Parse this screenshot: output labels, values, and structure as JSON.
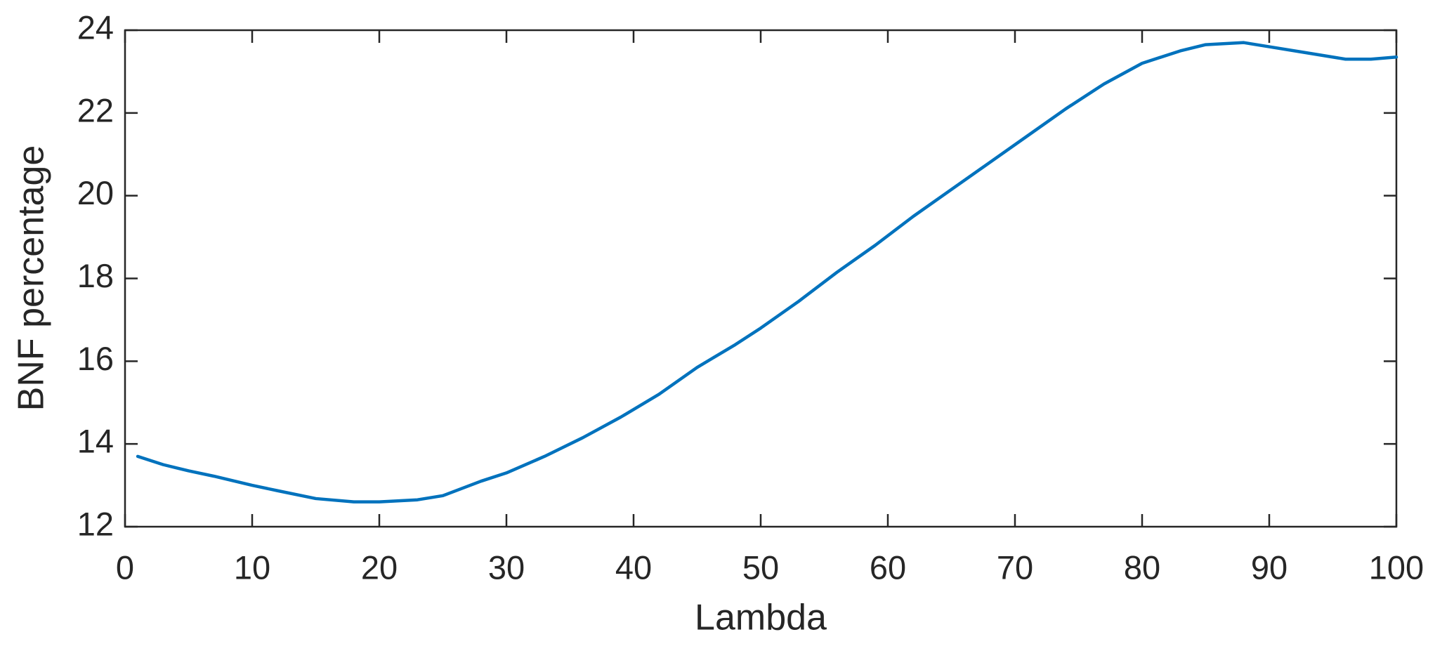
{
  "chart_data": {
    "type": "line",
    "xlabel": "Lambda",
    "ylabel": "BNF percentage",
    "x": [
      1,
      3,
      5,
      7,
      10,
      12,
      15,
      18,
      20,
      23,
      25,
      28,
      30,
      33,
      36,
      39,
      42,
      45,
      48,
      50,
      53,
      56,
      59,
      62,
      65,
      68,
      71,
      74,
      77,
      80,
      83,
      85,
      88,
      90,
      93,
      96,
      98,
      100
    ],
    "values": [
      13.7,
      13.5,
      13.35,
      13.22,
      13.0,
      12.87,
      12.68,
      12.6,
      12.6,
      12.65,
      12.75,
      13.1,
      13.3,
      13.7,
      14.15,
      14.65,
      15.2,
      15.85,
      16.4,
      16.8,
      17.45,
      18.15,
      18.8,
      19.5,
      20.15,
      20.8,
      21.45,
      22.1,
      22.7,
      23.2,
      23.5,
      23.65,
      23.7,
      23.6,
      23.45,
      23.3,
      23.3,
      23.35
    ],
    "color": "#0072bd",
    "xlim": [
      0,
      100
    ],
    "xticks": [
      0,
      10,
      20,
      30,
      40,
      50,
      60,
      70,
      80,
      90,
      100
    ],
    "ylim": [
      12,
      24
    ],
    "yticks": [
      12,
      14,
      16,
      18,
      20,
      22,
      24
    ]
  }
}
